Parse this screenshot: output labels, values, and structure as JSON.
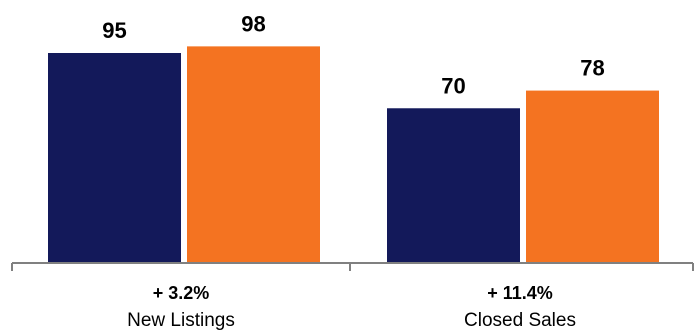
{
  "chart_data": {
    "type": "bar",
    "categories": [
      "New Listings",
      "Closed Sales"
    ],
    "changes": [
      "+ 3.2%",
      "+ 11.4%"
    ],
    "series": [
      {
        "values": [
          95,
          98
        ],
        "color": "#13195a"
      },
      {
        "values": [
          70,
          78
        ],
        "color": "#f47321"
      }
    ],
    "bars": [
      {
        "category": "New Listings",
        "values": [
          95,
          98
        ]
      },
      {
        "category": "Closed Sales",
        "values": [
          70,
          78
        ]
      }
    ],
    "ylim": [
      0,
      110
    ],
    "grid": false,
    "legend": "none",
    "axis_color": "#808080"
  }
}
